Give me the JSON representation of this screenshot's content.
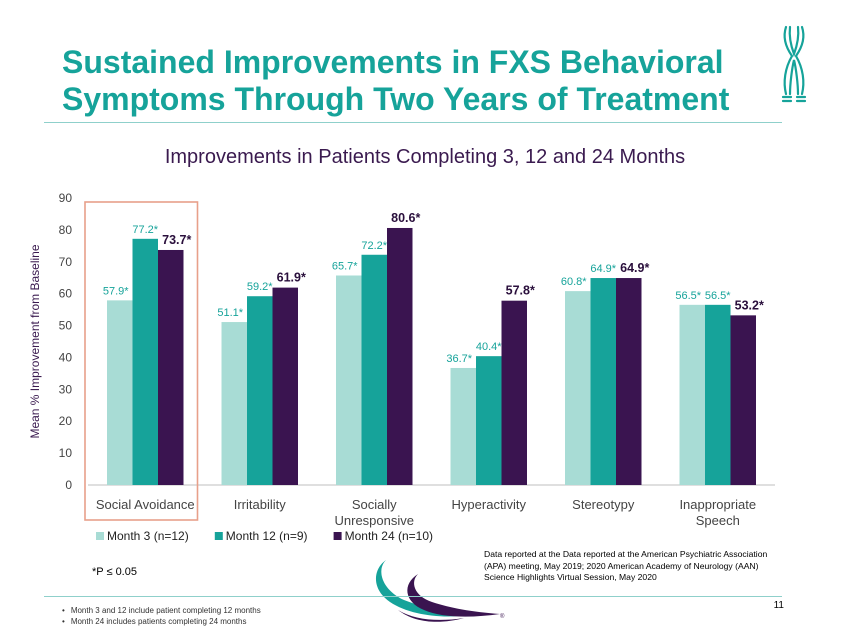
{
  "title_line1": "Sustained Improvements in FXS Behavioral",
  "title_line2": "Symptoms Through Two Years of Treatment",
  "subtitle": "Improvements in Patients Completing 3, 12 and 24 Months",
  "footnote_star": "*P ≤ 0.05",
  "source": "Data reported at the Data reported at the American Psychiatric Association (APA) meeting, May 2019; 2020 American Academy of Neurology (AAN) Science Highlights Virtual Session, May 2020",
  "notes": [
    "Month 3 and 12 include patient completing 12 months",
    "Month 24 includes patients completing 24 months"
  ],
  "page_number": "11",
  "logo_mark": "®",
  "colors": {
    "month3": "#a8dcd5",
    "month12": "#16a39a",
    "month24": "#3a1450",
    "highlight": "#e8a08a",
    "title": "#16a39a"
  },
  "chart_data": {
    "type": "bar",
    "ylabel": "Mean % Improvement from Baseline",
    "ylim": [
      0,
      90
    ],
    "yticks": [
      0,
      10,
      20,
      30,
      40,
      50,
      60,
      70,
      80,
      90
    ],
    "categories": [
      "Social Avoidance",
      "Irritability",
      "Socially Unresponsive",
      "Hyperactivity",
      "Stereotypy",
      "Inappropriate Speech"
    ],
    "series": [
      {
        "name": "Month 3 (n=12)",
        "values": [
          57.9,
          51.1,
          65.7,
          36.7,
          60.8,
          56.5
        ],
        "labels": [
          "57.9*",
          "51.1*",
          "65.7*",
          "36.7*",
          "60.8*",
          "56.5*"
        ]
      },
      {
        "name": "Month 12 (n=9)",
        "values": [
          77.2,
          59.2,
          72.2,
          40.4,
          64.9,
          56.5
        ],
        "labels": [
          "77.2*",
          "59.2*",
          "72.2*",
          "40.4*",
          "64.9*",
          "56.5*"
        ]
      },
      {
        "name": "Month 24 (n=10)",
        "values": [
          73.7,
          61.9,
          80.6,
          57.8,
          64.9,
          53.2
        ],
        "labels": [
          "73.7*",
          "61.9*",
          "80.6*",
          "57.8*",
          "64.9*",
          "53.2*"
        ]
      }
    ],
    "highlighted_category": "Social Avoidance",
    "legend_position": "bottom"
  }
}
